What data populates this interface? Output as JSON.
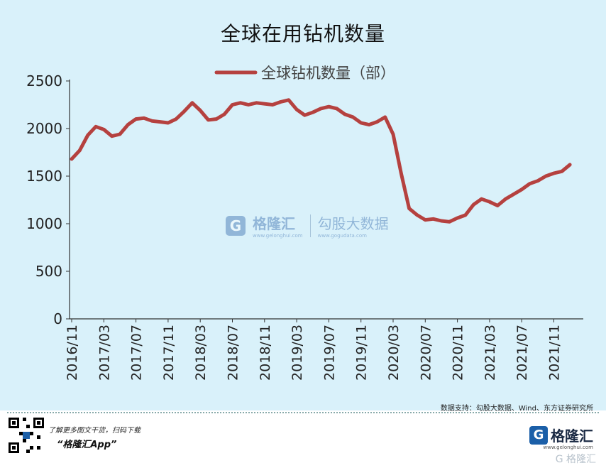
{
  "chart_data": {
    "type": "line",
    "title": "全球在用钻机数量",
    "xlabel": "",
    "ylabel": "",
    "ylim": [
      0,
      2500
    ],
    "yticks": [
      0,
      500,
      1000,
      1500,
      2000,
      2500
    ],
    "xticks": [
      "2016/11",
      "2017/03",
      "2017/07",
      "2017/11",
      "2018/03",
      "2018/07",
      "2018/11",
      "2019/03",
      "2019/07",
      "2019/11",
      "2020/03",
      "2020/07",
      "2020/11",
      "2021/03",
      "2021/07",
      "2021/11"
    ],
    "grid": false,
    "legend": "top-center",
    "series": [
      {
        "name": "全球钻机数量（部）",
        "color": "#b5413f",
        "x": [
          "2016/11",
          "2016/12",
          "2017/01",
          "2017/02",
          "2017/03",
          "2017/04",
          "2017/05",
          "2017/06",
          "2017/07",
          "2017/08",
          "2017/09",
          "2017/10",
          "2017/11",
          "2017/12",
          "2018/01",
          "2018/02",
          "2018/03",
          "2018/04",
          "2018/05",
          "2018/06",
          "2018/07",
          "2018/08",
          "2018/09",
          "2018/10",
          "2018/11",
          "2018/12",
          "2019/01",
          "2019/02",
          "2019/03",
          "2019/04",
          "2019/05",
          "2019/06",
          "2019/07",
          "2019/08",
          "2019/09",
          "2019/10",
          "2019/11",
          "2019/12",
          "2020/01",
          "2020/02",
          "2020/03",
          "2020/04",
          "2020/05",
          "2020/06",
          "2020/07",
          "2020/08",
          "2020/09",
          "2020/10",
          "2020/11",
          "2020/12",
          "2021/01",
          "2021/02",
          "2021/03",
          "2021/04",
          "2021/05",
          "2021/06",
          "2021/07",
          "2021/08",
          "2021/09",
          "2021/10",
          "2021/11",
          "2021/12",
          "2022/01"
        ],
        "values": [
          1680,
          1770,
          1930,
          2020,
          1990,
          1920,
          1940,
          2040,
          2100,
          2110,
          2080,
          2070,
          2060,
          2100,
          2180,
          2270,
          2190,
          2090,
          2100,
          2150,
          2250,
          2270,
          2250,
          2270,
          2260,
          2250,
          2280,
          2300,
          2200,
          2140,
          2170,
          2210,
          2230,
          2210,
          2150,
          2120,
          2060,
          2040,
          2070,
          2120,
          1940,
          1530,
          1160,
          1090,
          1040,
          1050,
          1030,
          1020,
          1060,
          1090,
          1200,
          1260,
          1230,
          1190,
          1260,
          1310,
          1360,
          1420,
          1450,
          1500,
          1530,
          1550,
          1620
        ]
      }
    ]
  },
  "source_note": "数据支持：勾股大数据、Wind、东方证券研究所",
  "footer": {
    "tagline": "了解更多图文干货，扫码下载",
    "app": "“格隆汇App”",
    "brand_name": "格隆汇",
    "brand_url": "www.gelonghui.com",
    "brand_watermark": "G 格隆汇"
  },
  "watermark": {
    "name1": "格隆汇",
    "sub1": "www.gelonghui.com",
    "name2": "勾股大数据",
    "sub2": "www.gogudata.com"
  }
}
